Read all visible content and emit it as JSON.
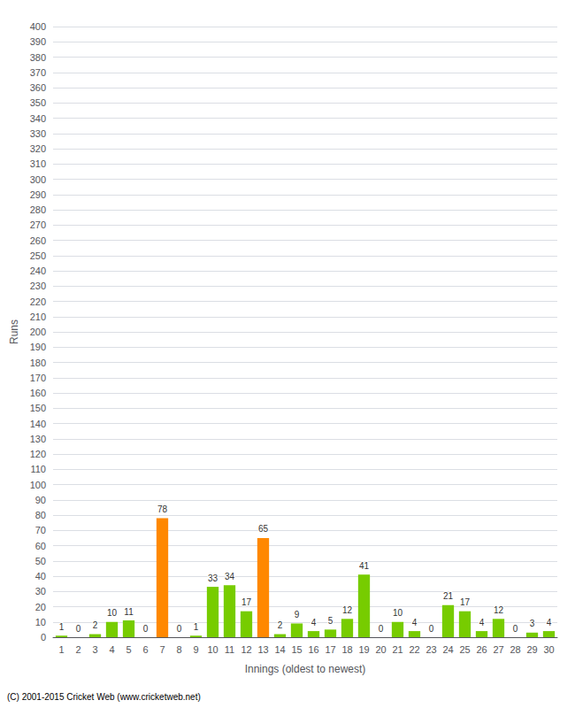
{
  "chart_data": {
    "type": "bar",
    "xlabel": "Innings (oldest to newest)",
    "ylabel": "Runs",
    "categories": [
      "1",
      "2",
      "3",
      "4",
      "5",
      "6",
      "7",
      "8",
      "9",
      "10",
      "11",
      "12",
      "13",
      "14",
      "15",
      "16",
      "17",
      "18",
      "19",
      "20",
      "21",
      "22",
      "23",
      "24",
      "25",
      "26",
      "27",
      "28",
      "29",
      "30"
    ],
    "values": [
      1,
      0,
      2,
      10,
      11,
      0,
      78,
      0,
      1,
      33,
      34,
      17,
      65,
      2,
      9,
      4,
      5,
      12,
      41,
      0,
      10,
      4,
      0,
      21,
      17,
      4,
      12,
      0,
      3,
      4
    ],
    "colors": [
      "#77cc00",
      "#77cc00",
      "#77cc00",
      "#77cc00",
      "#77cc00",
      "#77cc00",
      "#ff8800",
      "#77cc00",
      "#77cc00",
      "#77cc00",
      "#77cc00",
      "#77cc00",
      "#ff8800",
      "#77cc00",
      "#77cc00",
      "#77cc00",
      "#77cc00",
      "#77cc00",
      "#77cc00",
      "#77cc00",
      "#77cc00",
      "#77cc00",
      "#77cc00",
      "#77cc00",
      "#77cc00",
      "#77cc00",
      "#77cc00",
      "#77cc00",
      "#77cc00",
      "#77cc00"
    ],
    "ylim": [
      0,
      400
    ],
    "yticks": [
      0,
      10,
      20,
      30,
      40,
      50,
      60,
      70,
      80,
      90,
      100,
      110,
      120,
      130,
      140,
      150,
      160,
      170,
      180,
      190,
      200,
      210,
      220,
      230,
      240,
      250,
      260,
      270,
      280,
      290,
      300,
      310,
      320,
      330,
      340,
      350,
      360,
      370,
      380,
      390,
      400
    ],
    "grid": true,
    "data_labels": true,
    "footer": "(C) 2001-2015 Cricket Web (www.cricketweb.net)"
  }
}
